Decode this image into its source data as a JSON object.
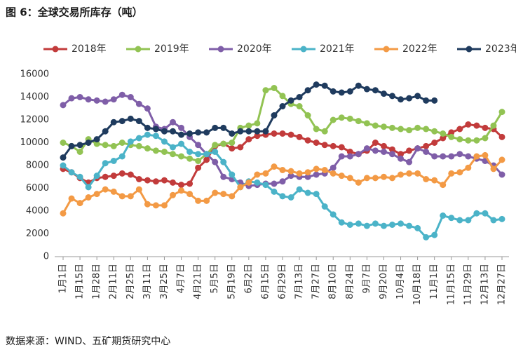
{
  "chart_data": {
    "type": "line",
    "title": "图 6：全球交易所库存（吨）",
    "source": "数据来源：WIND、五矿期货研究中心",
    "categories": [
      "1月1日",
      null,
      "1月15日",
      null,
      "1月28日",
      null,
      "2月11日",
      null,
      "2月25日",
      null,
      "3月11日",
      null,
      "3月25日",
      null,
      "4月7日",
      null,
      "4月21日",
      null,
      "5月5日",
      null,
      "5月19日",
      null,
      "6月2日",
      null,
      "6月15日",
      null,
      "6月29日",
      null,
      "7月13日",
      null,
      "7月27日",
      null,
      "8月10日",
      null,
      "8月24日",
      null,
      "9月7日",
      null,
      "9月20日",
      null,
      "10月4日",
      null,
      "10月18日",
      null,
      "11月1日",
      null,
      "11月15日",
      null,
      "11月29日",
      null,
      "12月13日",
      null,
      "12月27日"
    ],
    "series": [
      {
        "name": "2018年",
        "color": "#c23b3b",
        "values": [
          7700,
          7400,
          6900,
          6500,
          6900,
          7000,
          7100,
          7300,
          7200,
          6800,
          6700,
          6600,
          6700,
          6500,
          6300,
          6400,
          7800,
          8500,
          9700,
          9900,
          9500,
          9600,
          10300,
          10600,
          10700,
          10800,
          10800,
          10700,
          10500,
          10200,
          10000,
          9800,
          9700,
          9600,
          9200,
          9000,
          9300,
          10000,
          9700,
          9400,
          9000,
          9300,
          9500,
          9700,
          10000,
          10400,
          10900,
          11200,
          11600,
          11500,
          11300,
          11200,
          10500
        ]
      },
      {
        "name": "2019年",
        "color": "#92c353",
        "values": [
          10000,
          9700,
          9200,
          10300,
          9900,
          9800,
          9700,
          10000,
          9800,
          9700,
          9500,
          9300,
          9200,
          9000,
          8800,
          8600,
          8400,
          9000,
          9800,
          9900,
          10000,
          11300,
          11500,
          11700,
          14600,
          14800,
          14100,
          13400,
          13200,
          12400,
          11200,
          11000,
          12000,
          12200,
          12100,
          11900,
          11700,
          11500,
          11400,
          11300,
          11200,
          11100,
          11300,
          11200,
          11000,
          10800,
          10500,
          10300,
          10200,
          10200,
          10400,
          11500,
          12700
        ]
      },
      {
        "name": "2020年",
        "color": "#7f5ea8",
        "values": [
          13300,
          13900,
          14000,
          13800,
          13700,
          13600,
          13800,
          14200,
          14000,
          13400,
          13000,
          11400,
          11200,
          11800,
          11300,
          10500,
          9800,
          9000,
          8300,
          7000,
          6800,
          6500,
          6200,
          6300,
          6400,
          6400,
          6600,
          7100,
          7000,
          7000,
          7200,
          7300,
          7800,
          8800,
          8800,
          9000,
          9500,
          9300,
          9200,
          9000,
          8600,
          8300,
          9500,
          9200,
          8800,
          8800,
          8800,
          9000,
          8800,
          8600,
          8400,
          8000,
          7200
        ]
      },
      {
        "name": "2021年",
        "color": "#4bb3c8",
        "values": [
          8000,
          7400,
          7000,
          6100,
          7100,
          8200,
          8400,
          8800,
          10100,
          10400,
          10700,
          10600,
          10100,
          9600,
          9900,
          9200,
          9000,
          9000,
          9200,
          8300,
          7200,
          6100,
          6600,
          6500,
          6300,
          5700,
          5300,
          5200,
          5900,
          5600,
          5500,
          4400,
          3700,
          3000,
          2800,
          2900,
          2700,
          2900,
          2700,
          2800,
          2900,
          2700,
          2500,
          1700,
          1900,
          3600,
          3400,
          3200,
          3200,
          3800,
          3800,
          3200,
          3300
        ]
      },
      {
        "name": "2022年",
        "color": "#f39a45",
        "values": [
          3800,
          5100,
          4700,
          5200,
          5500,
          5900,
          5700,
          5300,
          5300,
          5900,
          4600,
          4500,
          4500,
          5400,
          5800,
          5500,
          4900,
          4900,
          5600,
          5500,
          5300,
          6100,
          6500,
          7200,
          7300,
          7900,
          7600,
          7500,
          7300,
          7400,
          7700,
          7600,
          7300,
          7100,
          6900,
          6500,
          6900,
          6900,
          7000,
          6900,
          7200,
          7300,
          7300,
          6800,
          6700,
          6300,
          7300,
          7400,
          7800,
          8800,
          8900,
          7700,
          8500
        ]
      },
      {
        "name": "2023年",
        "color": "#1f3b5e",
        "values": [
          8700,
          9700,
          9800,
          10000,
          10300,
          11000,
          11800,
          11900,
          12100,
          11900,
          11300,
          11200,
          11000,
          11000,
          10700,
          10800,
          10900,
          10900,
          11300,
          11300,
          10800,
          11000,
          11000,
          11000,
          11000,
          12400,
          13200,
          13700,
          14000,
          14600,
          15100,
          15000,
          14500,
          14400,
          14500,
          15000,
          14700,
          14600,
          14300,
          14100,
          13800,
          13900,
          14100,
          13700,
          13700,
          null,
          null,
          null,
          null,
          null,
          null,
          null,
          null
        ]
      }
    ],
    "ylim": [
      0,
      16000
    ],
    "yticks": [
      0,
      2000,
      4000,
      6000,
      8000,
      10000,
      12000,
      14000,
      16000
    ],
    "grid": false,
    "legend": "top"
  }
}
